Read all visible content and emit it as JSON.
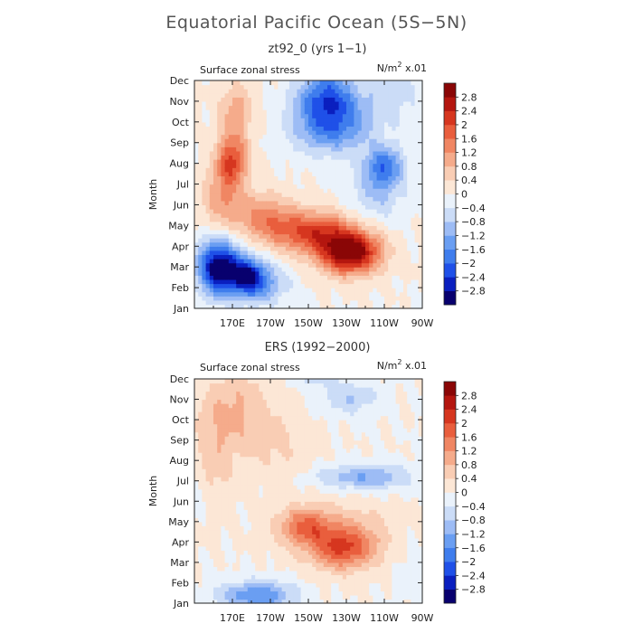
{
  "page_title": "Equatorial Pacific Ocean (5S−5N)",
  "colormap": [
    "#08006e",
    "#0a1fbf",
    "#1f50e8",
    "#3f7ded",
    "#6a9ef2",
    "#9dbcf5",
    "#cbdcf7",
    "#eaf2fb",
    "#fce7d6",
    "#f9cdb4",
    "#f5ab8b",
    "#f08663",
    "#e95e3d",
    "#d6361f",
    "#b4160f",
    "#8a0606"
  ],
  "chart_data": [
    {
      "type": "heatmap",
      "title": "zt92_0 (yrs 1−1)",
      "field_label": "Surface zonal stress",
      "units_prefix": "N/m",
      "units_suffix": " x.01",
      "ylabel": "Month",
      "y_ticks": [
        "Jan",
        "Feb",
        "Mar",
        "Apr",
        "May",
        "Jun",
        "Jul",
        "Aug",
        "Sep",
        "Oct",
        "Nov",
        "Dec"
      ],
      "x_ticks": [
        "170E",
        "170W",
        "150W",
        "130W",
        "110W",
        "90W"
      ],
      "x_tick_lons": [
        170,
        190,
        210,
        230,
        250,
        270
      ],
      "xlim_lon": [
        150,
        270
      ],
      "levels": [
        -2.8,
        -2.4,
        -2,
        -1.6,
        -1.2,
        -0.8,
        -0.4,
        0,
        0.4,
        0.8,
        1.2,
        1.6,
        2,
        2.4,
        2.8
      ],
      "level_labels": [
        "2.8",
        "2.4",
        "2",
        "1.6",
        "1.2",
        "0.8",
        "0.4",
        "0",
        "−0.4",
        "−0.8",
        "−1.2",
        "−1.6",
        "−2",
        "−2.4",
        "−2.8"
      ],
      "features": [
        {
          "lon": 163,
          "month": 2.0,
          "value": -3.2,
          "rl": 11,
          "rm": 1.3
        },
        {
          "lon": 178,
          "month": 1.6,
          "value": -2.0,
          "rl": 9,
          "rm": 0.9
        },
        {
          "lon": 185,
          "month": 1.2,
          "value": -1.2,
          "rl": 14,
          "rm": 1.0
        },
        {
          "lon": 232,
          "month": 2.7,
          "value": 3.2,
          "rl": 16,
          "rm": 1.0
        },
        {
          "lon": 212,
          "month": 3.7,
          "value": 2.0,
          "rl": 22,
          "rm": 1.0
        },
        {
          "lon": 186,
          "month": 4.5,
          "value": 1.2,
          "rl": 16,
          "rm": 1.1
        },
        {
          "lon": 170,
          "month": 7.2,
          "value": 2.0,
          "rl": 8,
          "rm": 1.3
        },
        {
          "lon": 164,
          "month": 5.4,
          "value": 1.0,
          "rl": 10,
          "rm": 1.5
        },
        {
          "lon": 172,
          "month": 9.6,
          "value": 1.0,
          "rl": 9,
          "rm": 1.2
        },
        {
          "lon": 222,
          "month": 8.9,
          "value": -2.0,
          "rl": 20,
          "rm": 1.3
        },
        {
          "lon": 220,
          "month": 10.2,
          "value": -1.6,
          "rl": 16,
          "rm": 0.9
        },
        {
          "lon": 250,
          "month": 6.9,
          "value": -1.6,
          "rl": 10,
          "rm": 1.0
        },
        {
          "lon": 246,
          "month": 5.6,
          "value": -0.8,
          "rl": 14,
          "rm": 1.5
        },
        {
          "lon": 220,
          "month": 11.3,
          "value": -1.0,
          "rl": 12,
          "rm": 0.7
        },
        {
          "lon": 255,
          "month": 10.5,
          "value": -0.6,
          "rl": 14,
          "rm": 1.5
        }
      ]
    },
    {
      "type": "heatmap",
      "title": "ERS (1992−2000)",
      "field_label": "Surface zonal stress",
      "units_prefix": "N/m",
      "units_suffix": " x.01",
      "ylabel": "Month",
      "y_ticks": [
        "Jan",
        "Feb",
        "Mar",
        "Apr",
        "May",
        "Jun",
        "Jul",
        "Aug",
        "Sep",
        "Oct",
        "Nov",
        "Dec"
      ],
      "x_ticks": [
        "170E",
        "170W",
        "150W",
        "130W",
        "110W",
        "90W"
      ],
      "x_tick_lons": [
        170,
        190,
        210,
        230,
        250,
        270
      ],
      "xlim_lon": [
        150,
        270
      ],
      "levels": [
        -2.8,
        -2.4,
        -2,
        -1.6,
        -1.2,
        -0.8,
        -0.4,
        0,
        0.4,
        0.8,
        1.2,
        1.6,
        2,
        2.4,
        2.8
      ],
      "level_labels": [
        "2.8",
        "2.4",
        "2",
        "1.6",
        "1.2",
        "0.8",
        "0.4",
        "0",
        "−0.4",
        "−0.8",
        "−1.2",
        "−1.6",
        "−2",
        "−2.4",
        "−2.8"
      ],
      "features": [
        {
          "lon": 228,
          "month": 2.7,
          "value": 1.6,
          "rl": 16,
          "rm": 1.0
        },
        {
          "lon": 208,
          "month": 3.8,
          "value": 1.4,
          "rl": 14,
          "rm": 0.9
        },
        {
          "lon": 230,
          "month": 3.4,
          "value": 0.7,
          "rl": 28,
          "rm": 1.5
        },
        {
          "lon": 172,
          "month": 9.5,
          "value": 0.8,
          "rl": 18,
          "rm": 2.0
        },
        {
          "lon": 195,
          "month": 7.8,
          "value": 0.4,
          "rl": 18,
          "rm": 2.0
        },
        {
          "lon": 160,
          "month": 7.0,
          "value": 0.6,
          "rl": 10,
          "rm": 2.5
        },
        {
          "lon": 183,
          "month": 0.4,
          "value": -1.6,
          "rl": 20,
          "rm": 0.7
        },
        {
          "lon": 240,
          "month": 6.2,
          "value": -1.2,
          "rl": 25,
          "rm": 0.6
        },
        {
          "lon": 232,
          "month": 10.1,
          "value": -0.8,
          "rl": 14,
          "rm": 0.8
        },
        {
          "lon": 215,
          "month": 11.2,
          "value": -0.8,
          "rl": 12,
          "rm": 0.5
        },
        {
          "lon": 150,
          "month": 5.4,
          "value": -0.3,
          "rl": 10,
          "rm": 1.2
        },
        {
          "lon": 262,
          "month": 2.0,
          "value": -0.2,
          "rl": 8,
          "rm": 2.0
        }
      ]
    }
  ]
}
